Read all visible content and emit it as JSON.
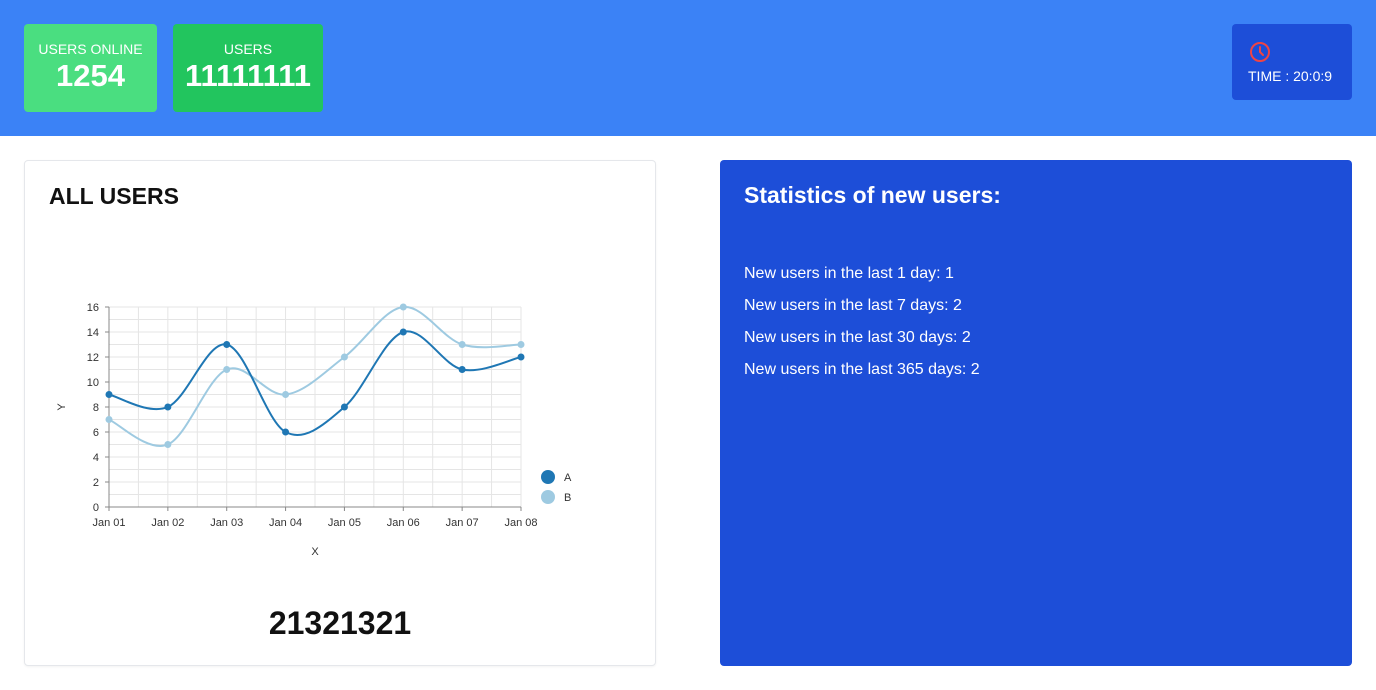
{
  "header": {
    "users_online": {
      "label": "USERS ONLINE",
      "value": "1254"
    },
    "users": {
      "label": "USERS",
      "value": "11111111"
    },
    "time": {
      "text": "TIME : 20:0:9",
      "icon": "clock-icon",
      "icon_color": "#ef4444"
    }
  },
  "all_users": {
    "title": "ALL USERS",
    "total": "21321321"
  },
  "new_users": {
    "title": "Statistics of new users:",
    "lines": [
      "New users in the last 1 day: 1",
      "New users in the last 7 days: 2",
      "New users in the last 30 days: 2",
      "New users in the last 365 days: 2"
    ]
  },
  "colors": {
    "header_bg": "#3b82f6",
    "card_online": "#4ade80",
    "card_users": "#22c55e",
    "accent_blue": "#1d4ed8",
    "series_a": "#1f77b4",
    "series_b": "#9ecae1"
  },
  "chart_data": {
    "type": "line",
    "categories": [
      "Jan 01",
      "Jan 02",
      "Jan 03",
      "Jan 04",
      "Jan 05",
      "Jan 06",
      "Jan 07",
      "Jan 08"
    ],
    "series": [
      {
        "name": "A",
        "values": [
          9,
          8,
          13,
          6,
          8,
          14,
          11,
          12
        ]
      },
      {
        "name": "B",
        "values": [
          7,
          5,
          11,
          9,
          12,
          16,
          13,
          13
        ]
      }
    ],
    "xlabel": "X",
    "ylabel": "Y",
    "ylim": [
      0,
      16
    ],
    "yticks": [
      0,
      2,
      4,
      6,
      8,
      10,
      12,
      14,
      16
    ],
    "grid": true,
    "legend": "right"
  }
}
